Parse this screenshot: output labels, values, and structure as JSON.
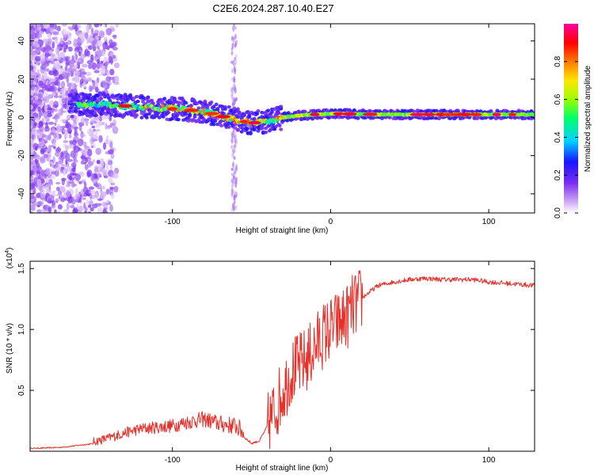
{
  "title": "C2E6.2024.287.10.40.E27",
  "chart_data": [
    {
      "type": "heatmap",
      "xlabel": "Height of straight line (km)",
      "ylabel": "Frequency (Hz)",
      "xlim": [
        -190,
        129
      ],
      "ylim": [
        -50,
        49
      ],
      "xticks": [
        -100,
        0,
        100
      ],
      "yticks": [
        -40,
        -20,
        0,
        20,
        40
      ],
      "colorbar": {
        "label": "Normalized spectral amplitude",
        "range": [
          0,
          1
        ],
        "ticks": [
          "0.0",
          "0.2",
          "0.4",
          "0.6",
          "0.8"
        ],
        "colors": [
          "#ffffff",
          "#cda8f5",
          "#7a2df0",
          "#1a14ff",
          "#00d2ff",
          "#00ff6a",
          "#9bff00",
          "#ffe600",
          "#ff7a00",
          "#ff0000",
          "#ff00a0"
        ]
      },
      "ridge": [
        {
          "x": -170,
          "f": 6
        },
        {
          "x": -150,
          "f": 7
        },
        {
          "x": -130,
          "f": 6
        },
        {
          "x": -110,
          "f": 5
        },
        {
          "x": -90,
          "f": 4
        },
        {
          "x": -75,
          "f": 2
        },
        {
          "x": -62,
          "f": -1
        },
        {
          "x": -50,
          "f": -3
        },
        {
          "x": -40,
          "f": -2
        },
        {
          "x": -30,
          "f": 0
        },
        {
          "x": -20,
          "f": 1
        },
        {
          "x": 0,
          "f": 2
        },
        {
          "x": 30,
          "f": 1.5
        },
        {
          "x": 60,
          "f": 1.5
        },
        {
          "x": 90,
          "f": 1.5
        },
        {
          "x": 129,
          "f": 1.5
        }
      ],
      "grid": false
    },
    {
      "type": "line",
      "xlabel": "Height of straight line (km)",
      "ylabel": "SNR (10 * v/v)",
      "scale_label": "(x10",
      "scale_exponent": "4",
      "xlim": [
        -190,
        129
      ],
      "ylim": [
        0,
        1.56
      ],
      "xticks": [
        -100,
        0,
        100
      ],
      "yticks": [
        "0.5",
        "1.0",
        "1.5"
      ],
      "color": "#e8302a",
      "series": [
        {
          "x": [
            -190,
            -170,
            -150,
            -140,
            -130,
            -120,
            -110,
            -100,
            -90,
            -80,
            -70,
            -60,
            -50,
            -45,
            -40,
            -35,
            -30,
            -25,
            -20,
            -15,
            -10,
            -5,
            0,
            5,
            10,
            15,
            20,
            25,
            30,
            40,
            50,
            60,
            70,
            80,
            90,
            100,
            110,
            120,
            129
          ],
          "y": [
            0.02,
            0.03,
            0.06,
            0.09,
            0.13,
            0.16,
            0.17,
            0.18,
            0.21,
            0.23,
            0.19,
            0.17,
            0.06,
            0.08,
            0.2,
            0.35,
            0.5,
            0.65,
            0.7,
            0.75,
            0.85,
            0.95,
            1.0,
            1.05,
            1.1,
            1.2,
            1.25,
            1.3,
            1.35,
            1.38,
            1.4,
            1.41,
            1.4,
            1.4,
            1.4,
            1.38,
            1.37,
            1.36,
            1.35
          ]
        }
      ],
      "grid": false
    }
  ]
}
